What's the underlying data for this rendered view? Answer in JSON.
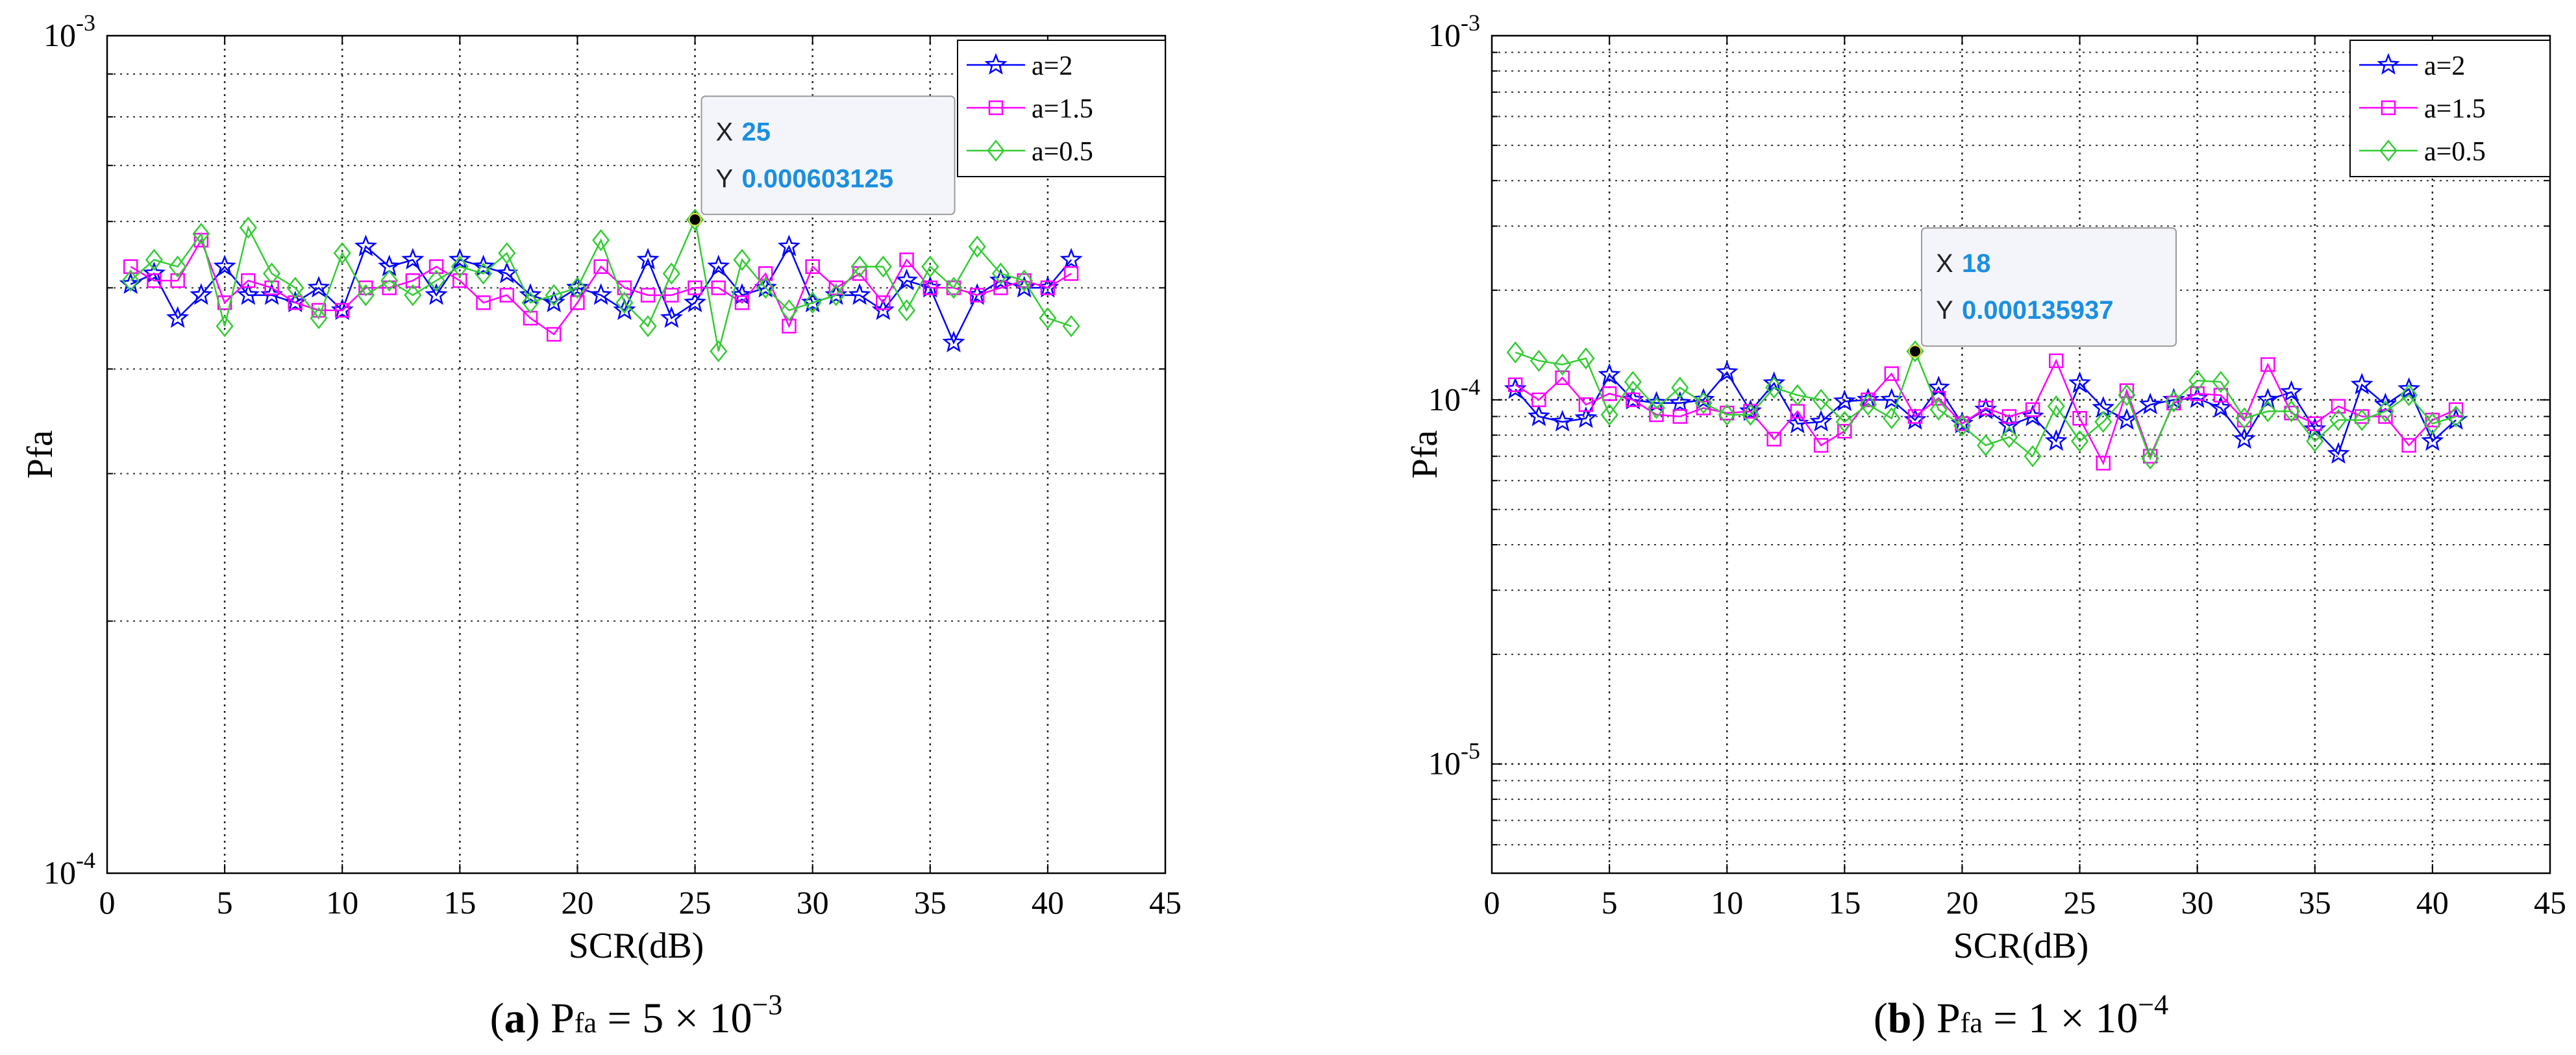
{
  "chart_data": [
    {
      "type": "line",
      "yscale": "log",
      "ylabel": "Pfa",
      "xlabel": "SCR(dB)",
      "xlim": [
        0,
        45
      ],
      "ylim_exp": [
        -4,
        -3
      ],
      "xticks": [
        "0",
        "5",
        "10",
        "15",
        "20",
        "25",
        "30",
        "35",
        "40",
        "45"
      ],
      "y_minor_values": [
        0.0002,
        0.0003,
        0.0004,
        0.0005,
        0.0006,
        0.0007,
        0.0008,
        0.0009
      ],
      "yticks": [
        {
          "base": "10",
          "exp": "-4",
          "value": 0.0001
        },
        {
          "base": "10",
          "exp": "-3",
          "value": 0.001
        }
      ],
      "grid": true,
      "legend_position": "top-right",
      "caption": {
        "letter": "a",
        "rest": ") P",
        "sub": "fa",
        "eq": " = 5 × 10",
        "sup": "−3"
      },
      "series": [
        {
          "name": "a=2",
          "color": "#0000ff",
          "marker": "star",
          "values": [
            0.000505,
            0.00052,
            0.00046,
            0.00049,
            0.00053,
            0.00049,
            0.00049,
            0.00048,
            0.0005,
            0.00047,
            0.00056,
            0.00053,
            0.00054,
            0.00049,
            0.00054,
            0.00053,
            0.00052,
            0.00049,
            0.00048,
            0.0005,
            0.00049,
            0.00047,
            0.00054,
            0.00046,
            0.00048,
            0.00053,
            0.00049,
            0.0005,
            0.00056,
            0.00048,
            0.00049,
            0.00049,
            0.00047,
            0.00051,
            0.0005,
            0.00043,
            0.00049,
            0.00051,
            0.0005,
            0.0005,
            0.00054
          ]
        },
        {
          "name": "a=1.5",
          "color": "#ff00ff",
          "marker": "square",
          "values": [
            0.00053,
            0.00051,
            0.00051,
            0.00057,
            0.00048,
            0.00051,
            0.0005,
            0.00048,
            0.00047,
            0.00047,
            0.0005,
            0.0005,
            0.00051,
            0.00053,
            0.00051,
            0.00048,
            0.00049,
            0.00046,
            0.00044,
            0.00048,
            0.00053,
            0.0005,
            0.00049,
            0.00049,
            0.0005,
            0.0005,
            0.00048,
            0.00052,
            0.00045,
            0.00053,
            0.0005,
            0.00052,
            0.00048,
            0.00054,
            0.0005,
            0.0005,
            0.00049,
            0.0005,
            0.00051,
            0.0005,
            0.00052
          ]
        },
        {
          "name": "a=0.5",
          "color": "#33cc33",
          "marker": "diamond",
          "values": [
            0.00051,
            0.00054,
            0.00053,
            0.00058,
            0.00045,
            0.00059,
            0.00052,
            0.0005,
            0.00046,
            0.00055,
            0.00049,
            0.00051,
            0.00049,
            0.00051,
            0.00053,
            0.00052,
            0.00055,
            0.00048,
            0.00049,
            0.0005,
            0.00057,
            0.00048,
            0.00045,
            0.00052,
            0.000603125,
            0.00042,
            0.00054,
            0.0005,
            0.00047,
            0.00048,
            0.00049,
            0.00053,
            0.00053,
            0.00047,
            0.00053,
            0.0005,
            0.00056,
            0.00052,
            0.00051,
            0.00046,
            0.00045
          ]
        }
      ],
      "datatip": {
        "series": "a=0.5",
        "x_label": "X",
        "x_value": "25",
        "y_label": "Y",
        "y_value": "0.000603125",
        "x": 25,
        "y": 0.000603125
      }
    },
    {
      "type": "line",
      "yscale": "log",
      "ylabel": "Pfa",
      "xlabel": "SCR(dB)",
      "xlim": [
        0,
        45
      ],
      "ylim_exp": [
        -5.3,
        -3
      ],
      "xticks": [
        "0",
        "5",
        "10",
        "15",
        "20",
        "25",
        "30",
        "35",
        "40",
        "45"
      ],
      "y_minor_values": [
        6e-06,
        7e-06,
        8e-06,
        9e-06,
        2e-05,
        3e-05,
        4e-05,
        5e-05,
        6e-05,
        7e-05,
        8e-05,
        9e-05,
        0.0002,
        0.0003,
        0.0004,
        0.0005,
        0.0006,
        0.0007,
        0.0008,
        0.0009
      ],
      "yticks": [
        {
          "base": "10",
          "exp": "-5",
          "value": 1e-05
        },
        {
          "base": "10",
          "exp": "-4",
          "value": 0.0001
        },
        {
          "base": "10",
          "exp": "-3",
          "value": 0.001
        }
      ],
      "grid": true,
      "legend_position": "top-right",
      "caption": {
        "letter": "b",
        "rest": ") P",
        "sub": "fa",
        "eq": " = 1 × 10",
        "sup": "−4"
      },
      "series": [
        {
          "name": "a=2",
          "color": "#0000ff",
          "marker": "star",
          "values": [
            0.000107,
            9e-05,
            8.7e-05,
            8.9e-05,
            0.000117,
            0.0001,
            9.8e-05,
            9.8e-05,
            0.0001,
            0.000119,
            9.3e-05,
            0.000111,
            8.6e-05,
            8.7e-05,
            9.9e-05,
            0.0001,
            0.0001,
            8.8e-05,
            0.000108,
            8.6e-05,
            9.4e-05,
            8.5e-05,
            9e-05,
            7.7e-05,
            0.000111,
            9.5e-05,
            8.8e-05,
            9.7e-05,
            0.0001,
            0.000101,
            9.5e-05,
            7.8e-05,
            0.0001,
            0.000105,
            8.3e-05,
            7.1e-05,
            0.00011,
            9.7e-05,
            0.000107,
            7.7e-05,
            8.8e-05
          ]
        },
        {
          "name": "a=1.5",
          "color": "#ff00ff",
          "marker": "square",
          "values": [
            0.00011,
            0.0001,
            0.000115,
            9.7e-05,
            0.000104,
            0.0001,
            9.1e-05,
            9e-05,
            9.5e-05,
            9.2e-05,
            9.3e-05,
            7.8e-05,
            9.3e-05,
            7.5e-05,
            8.2e-05,
            0.0001,
            0.000118,
            9e-05,
            0.000101,
            8.6e-05,
            9.5e-05,
            9e-05,
            9.4e-05,
            0.000128,
            8.9e-05,
            6.7e-05,
            0.000106,
            7e-05,
            9.8e-05,
            0.000104,
            0.000103,
            8.8e-05,
            0.000125,
            9.2e-05,
            8.6e-05,
            9.6e-05,
            9e-05,
            9e-05,
            7.5e-05,
            8.8e-05,
            9.4e-05
          ]
        },
        {
          "name": "a=0.5",
          "color": "#33cc33",
          "marker": "diamond",
          "values": [
            0.000135,
            0.000128,
            0.000125,
            0.00013,
            9.1e-05,
            0.000112,
            9.5e-05,
            0.000108,
            9.8e-05,
            9.1e-05,
            9.1e-05,
            0.000108,
            0.000103,
            0.0001,
            8.7e-05,
            9.7e-05,
            8.9e-05,
            0.000135937,
            9.4e-05,
            8.5e-05,
            7.5e-05,
            7.9e-05,
            7e-05,
            9.6e-05,
            7.7e-05,
            8.7e-05,
            0.000103,
            6.9e-05,
            9.9e-05,
            0.000113,
            0.000112,
            8.9e-05,
            9.3e-05,
            9.3e-05,
            7.7e-05,
            8.8e-05,
            8.8e-05,
            9.3e-05,
            0.000103,
            8.6e-05,
            9e-05
          ]
        }
      ],
      "datatip": {
        "series": "a=0.5",
        "x_label": "X",
        "x_value": "18",
        "y_label": "Y",
        "y_value": "0.000135937",
        "x": 18,
        "y": 0.000135937
      }
    }
  ]
}
